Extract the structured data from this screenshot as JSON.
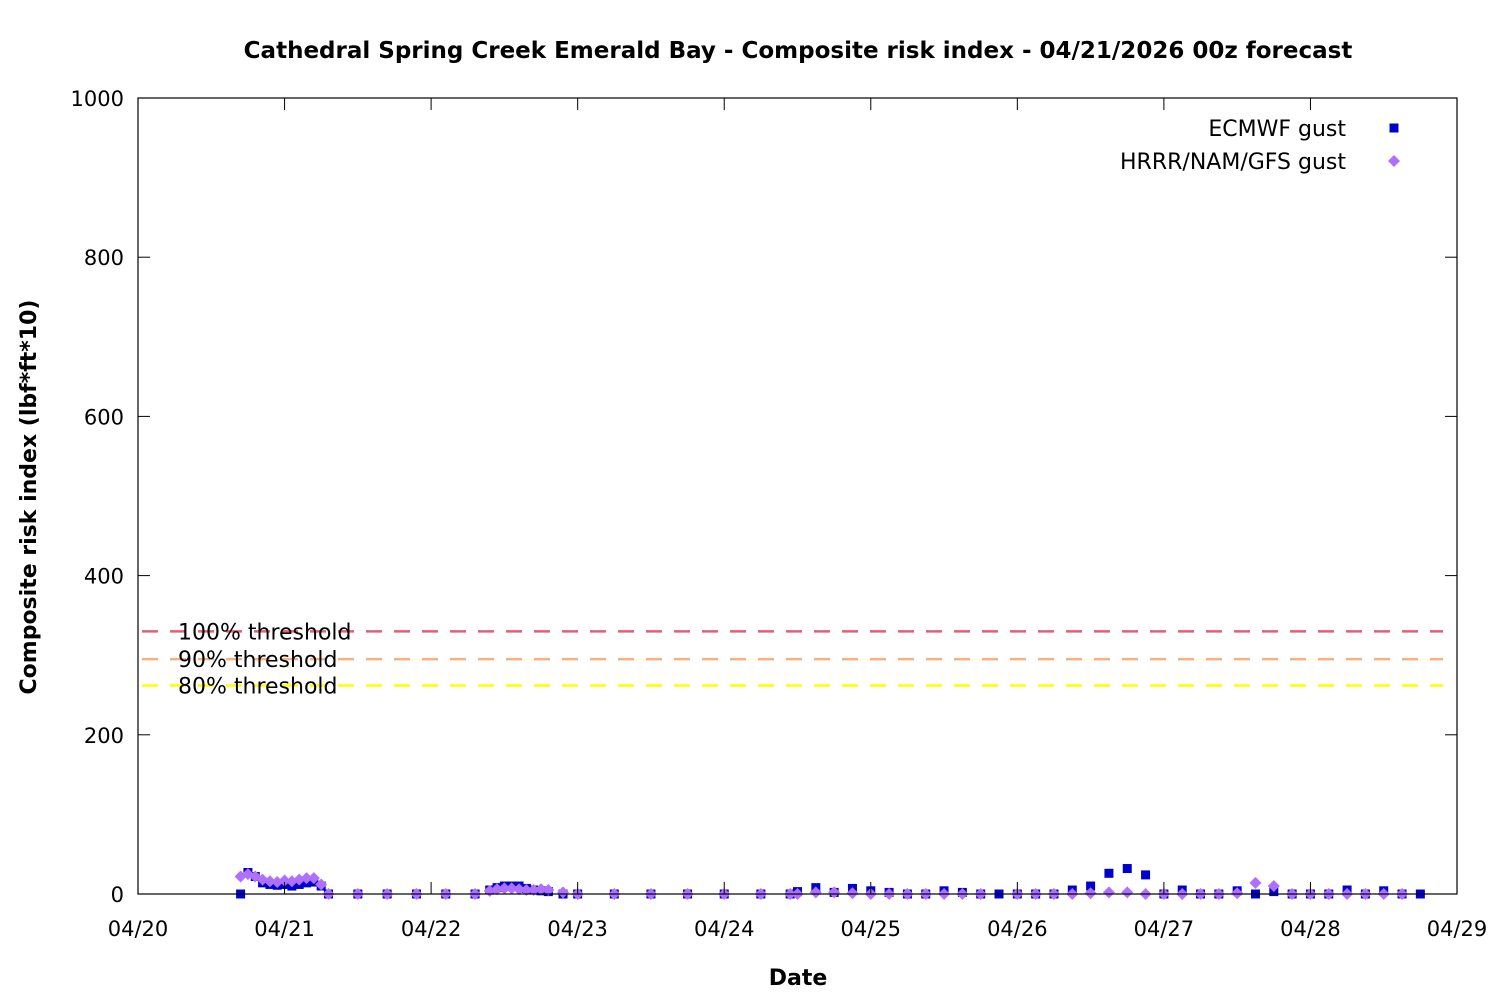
{
  "chart_data": {
    "type": "scatter",
    "title": "Cathedral Spring Creek Emerald Bay - Composite risk index - 04/21/2026 00z forecast",
    "xlabel": "Date",
    "ylabel": "Composite risk index (lbf*ft*10)",
    "x_unit": "days since 04/20 00z",
    "xlim": [
      0,
      9
    ],
    "ylim": [
      0,
      1000
    ],
    "x_ticks": [
      {
        "x": 0,
        "label": "04/20"
      },
      {
        "x": 1,
        "label": "04/21"
      },
      {
        "x": 2,
        "label": "04/22"
      },
      {
        "x": 3,
        "label": "04/23"
      },
      {
        "x": 4,
        "label": "04/24"
      },
      {
        "x": 5,
        "label": "04/25"
      },
      {
        "x": 6,
        "label": "04/26"
      },
      {
        "x": 7,
        "label": "04/27"
      },
      {
        "x": 8,
        "label": "04/28"
      },
      {
        "x": 9,
        "label": "04/29"
      }
    ],
    "y_ticks": [
      {
        "y": 0,
        "label": "0"
      },
      {
        "y": 200,
        "label": "200"
      },
      {
        "y": 400,
        "label": "400"
      },
      {
        "y": 600,
        "label": "600"
      },
      {
        "y": 800,
        "label": "800"
      },
      {
        "y": 1000,
        "label": "1000"
      }
    ],
    "grid": false,
    "legend_position": "top-right",
    "thresholds": [
      {
        "label": "100% threshold",
        "value": 330,
        "color": "#e0607a"
      },
      {
        "label": "90% threshold",
        "value": 295,
        "color": "#f5b27a"
      },
      {
        "label": "80% threshold",
        "value": 262,
        "color": "#ffff00"
      }
    ],
    "series": [
      {
        "name": "ECMWF gust",
        "marker": "square",
        "color": "#0000cc",
        "x": [
          0.7,
          0.75,
          0.8,
          0.85,
          0.9,
          0.95,
          1.0,
          1.05,
          1.1,
          1.15,
          1.2,
          1.25,
          1.3,
          1.5,
          1.7,
          1.9,
          2.1,
          2.3,
          2.4,
          2.45,
          2.5,
          2.55,
          2.6,
          2.65,
          2.7,
          2.75,
          2.8,
          2.9,
          3.0,
          3.25,
          3.5,
          3.75,
          4.0,
          4.25,
          4.45,
          4.5,
          4.625,
          4.75,
          4.875,
          5.0,
          5.125,
          5.25,
          5.375,
          5.5,
          5.625,
          5.75,
          5.875,
          6.0,
          6.125,
          6.25,
          6.375,
          6.5,
          6.625,
          6.75,
          6.875,
          7.0,
          7.125,
          7.25,
          7.375,
          7.5,
          7.625,
          7.75,
          7.875,
          8.0,
          8.125,
          8.25,
          8.375,
          8.5,
          8.625,
          8.75
        ],
        "y": [
          0,
          27,
          22,
          14,
          12,
          11,
          12,
          10,
          12,
          14,
          15,
          10,
          0,
          0,
          0,
          0,
          0,
          0,
          5,
          8,
          10,
          10,
          10,
          7,
          5,
          4,
          3,
          0,
          0,
          0,
          0,
          0,
          0,
          0,
          0,
          3,
          8,
          2,
          7,
          4,
          2,
          0,
          0,
          4,
          2,
          0,
          0,
          0,
          0,
          0,
          5,
          10,
          26,
          32,
          24,
          0,
          5,
          0,
          0,
          4,
          0,
          3,
          0,
          0,
          0,
          5,
          0,
          4,
          0,
          0
        ]
      },
      {
        "name": "HRRR/NAM/GFS gust",
        "marker": "diamond",
        "color": "#b070ff",
        "x": [
          0.7,
          0.75,
          0.8,
          0.85,
          0.9,
          0.95,
          1.0,
          1.05,
          1.1,
          1.15,
          1.2,
          1.25,
          1.3,
          1.5,
          1.7,
          1.9,
          2.1,
          2.3,
          2.4,
          2.45,
          2.5,
          2.55,
          2.6,
          2.65,
          2.7,
          2.75,
          2.8,
          2.9,
          3.0,
          3.25,
          3.5,
          3.75,
          4.0,
          4.25,
          4.45,
          4.5,
          4.625,
          4.75,
          4.875,
          5.0,
          5.125,
          5.25,
          5.375,
          5.5,
          5.625,
          5.75,
          6.0,
          6.125,
          6.25,
          6.375,
          6.5,
          6.625,
          6.75,
          6.875,
          7.0,
          7.125,
          7.25,
          7.375,
          7.5,
          7.625,
          7.75,
          7.875,
          8.0,
          8.125,
          8.25,
          8.375,
          8.5,
          8.625
        ],
        "y": [
          22,
          25,
          22,
          18,
          16,
          15,
          17,
          16,
          18,
          20,
          20,
          12,
          0,
          0,
          0,
          0,
          0,
          0,
          4,
          6,
          7,
          7,
          6,
          5,
          5,
          6,
          5,
          2,
          0,
          0,
          0,
          0,
          0,
          0,
          0,
          0,
          2,
          2,
          1,
          0,
          0,
          0,
          0,
          0,
          0,
          0,
          0,
          0,
          0,
          0,
          1,
          2,
          2,
          0,
          0,
          0,
          0,
          0,
          1,
          14,
          10,
          0,
          0,
          0,
          0,
          0,
          0,
          0
        ]
      }
    ]
  }
}
